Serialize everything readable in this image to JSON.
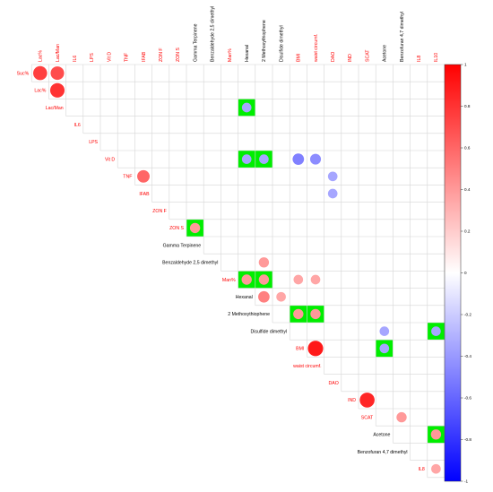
{
  "chart_data": {
    "type": "heatmap",
    "subtype": "upper-triangular correlation matrix (circle glyphs)",
    "variables": [
      {
        "name": "Suc%",
        "color": "#ff0000"
      },
      {
        "name": "Lac%",
        "color": "#ff0000"
      },
      {
        "name": "Lac/Man",
        "color": "#ff0000"
      },
      {
        "name": "IL6",
        "color": "#ff0000"
      },
      {
        "name": "LPS",
        "color": "#ff0000"
      },
      {
        "name": "Vit D",
        "color": "#ff0000"
      },
      {
        "name": "TNF",
        "color": "#ff0000"
      },
      {
        "name": "IFAB",
        "color": "#ff0000"
      },
      {
        "name": "ZON F",
        "color": "#ff0000"
      },
      {
        "name": "ZON S",
        "color": "#ff0000"
      },
      {
        "name": "Gamma Terpinene",
        "color": "#000000"
      },
      {
        "name": "Benzaldehyde 2,5 dimethyl",
        "color": "#000000"
      },
      {
        "name": "Man%",
        "color": "#ff0000"
      },
      {
        "name": "Hexanal",
        "color": "#000000"
      },
      {
        "name": "2 Methoxythiophene",
        "color": "#000000"
      },
      {
        "name": "Disulfide dimethyl",
        "color": "#000000"
      },
      {
        "name": "BMI",
        "color": "#ff0000"
      },
      {
        "name": "waist circumf.",
        "color": "#ff0000"
      },
      {
        "name": "DAO",
        "color": "#ff0000"
      },
      {
        "name": "IND",
        "color": "#ff0000"
      },
      {
        "name": "SCAT",
        "color": "#ff0000"
      },
      {
        "name": "Acetone",
        "color": "#000000"
      },
      {
        "name": "Benzofuran 4,7 dimethyl",
        "color": "#000000"
      },
      {
        "name": "IL8",
        "color": "#ff0000"
      },
      {
        "name": "IL10",
        "color": "#ff0000"
      }
    ],
    "cells": [
      {
        "row": "Suc%",
        "col": "Lac%",
        "r": 0.75,
        "highlight": false
      },
      {
        "row": "Suc%",
        "col": "Lac/Man",
        "r": 0.7,
        "highlight": false
      },
      {
        "row": "Lac%",
        "col": "Lac/Man",
        "r": 0.8,
        "highlight": false
      },
      {
        "row": "Lac/Man",
        "col": "Hexanal",
        "r": -0.35,
        "highlight": true
      },
      {
        "row": "Vit D",
        "col": "Hexanal",
        "r": -0.35,
        "highlight": true
      },
      {
        "row": "Vit D",
        "col": "2 Methoxythiophene",
        "r": -0.35,
        "highlight": true
      },
      {
        "row": "Vit D",
        "col": "BMI",
        "r": -0.5,
        "highlight": false
      },
      {
        "row": "Vit D",
        "col": "waist circumf.",
        "r": -0.45,
        "highlight": false
      },
      {
        "row": "TNF",
        "col": "IFAB",
        "r": 0.6,
        "highlight": false
      },
      {
        "row": "TNF",
        "col": "DAO",
        "r": -0.35,
        "highlight": false
      },
      {
        "row": "IFAB",
        "col": "DAO",
        "r": -0.35,
        "highlight": false
      },
      {
        "row": "ZON S",
        "col": "Gamma Terpinene",
        "r": 0.4,
        "highlight": true
      },
      {
        "row": "Benzaldehyde 2,5 dimethyl",
        "col": "2 Methoxythiophene",
        "r": 0.4,
        "highlight": false
      },
      {
        "row": "Man%",
        "col": "Hexanal",
        "r": 0.4,
        "highlight": true
      },
      {
        "row": "Man%",
        "col": "2 Methoxythiophene",
        "r": 0.4,
        "highlight": true
      },
      {
        "row": "Man%",
        "col": "BMI",
        "r": 0.35,
        "highlight": false
      },
      {
        "row": "Man%",
        "col": "waist circumf.",
        "r": 0.35,
        "highlight": false
      },
      {
        "row": "Hexanal",
        "col": "2 Methoxythiophene",
        "r": 0.5,
        "highlight": false
      },
      {
        "row": "Hexanal",
        "col": "Disulfide dimethyl",
        "r": 0.35,
        "highlight": false
      },
      {
        "row": "2 Methoxythiophene",
        "col": "BMI",
        "r": 0.4,
        "highlight": true
      },
      {
        "row": "2 Methoxythiophene",
        "col": "waist circumf.",
        "r": 0.4,
        "highlight": true
      },
      {
        "row": "Disulfide dimethyl",
        "col": "Acetone",
        "r": -0.35,
        "highlight": false
      },
      {
        "row": "Disulfide dimethyl",
        "col": "IL10",
        "r": -0.35,
        "highlight": true
      },
      {
        "row": "BMI",
        "col": "waist circumf.",
        "r": 0.9,
        "highlight": false
      },
      {
        "row": "BMI",
        "col": "Acetone",
        "r": -0.35,
        "highlight": true
      },
      {
        "row": "IND",
        "col": "SCAT",
        "r": 0.85,
        "highlight": false
      },
      {
        "row": "SCAT",
        "col": "Benzofuran 4,7 dimethyl",
        "r": 0.4,
        "highlight": false
      },
      {
        "row": "Acetone",
        "col": "IL10",
        "r": 0.4,
        "highlight": true
      },
      {
        "row": "IL8",
        "col": "IL10",
        "r": 0.35,
        "highlight": false
      }
    ],
    "colorbar": {
      "range": [
        -1,
        1
      ],
      "ticks": [
        "1",
        "0.8",
        "0.6",
        "0.4",
        "0.2",
        "0",
        "-0.2",
        "-0.4",
        "-0.6",
        "-0.8",
        "-1"
      ],
      "colors": {
        "negative": "#0000ff",
        "zero": "#ffffff",
        "positive": "#ff0000"
      }
    },
    "highlight_color": "#00ee00",
    "grid": true
  }
}
